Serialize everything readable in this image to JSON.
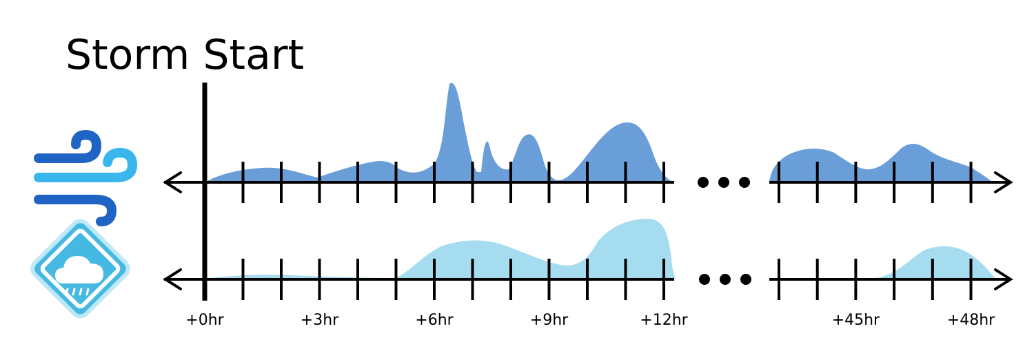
{
  "title": "Storm Start",
  "rows": [
    {
      "name": "wind",
      "icon": "wind-icon",
      "color": "#6a9ed8"
    },
    {
      "name": "rain",
      "icon": "rain-warning-icon",
      "color": "#a6dcef"
    }
  ],
  "tick_labels": [
    {
      "text": "+0hr",
      "hour": 0
    },
    {
      "text": "+3hr",
      "hour": 3
    },
    {
      "text": "+6hr",
      "hour": 6
    },
    {
      "text": "+9hr",
      "hour": 9
    },
    {
      "text": "+12hr",
      "hour": 12
    },
    {
      "text": "+45hr",
      "hour": 45
    },
    {
      "text": "+48hr",
      "hour": 48
    }
  ],
  "tick_hours_first_segment": [
    0,
    1,
    2,
    3,
    4,
    5,
    6,
    7,
    8,
    9,
    10,
    11,
    12
  ],
  "tick_hours_second_segment": [
    43,
    44,
    45,
    46,
    47,
    48
  ],
  "gap_marker": "•••",
  "colors": {
    "wind_fill": "#6a9ed8",
    "rain_fill": "#a6dcef",
    "wind_icon_dark": "#1f63c4",
    "wind_icon_light": "#39b7ec",
    "rain_icon_bg": "#45b9e2",
    "axis": "#000000"
  }
}
